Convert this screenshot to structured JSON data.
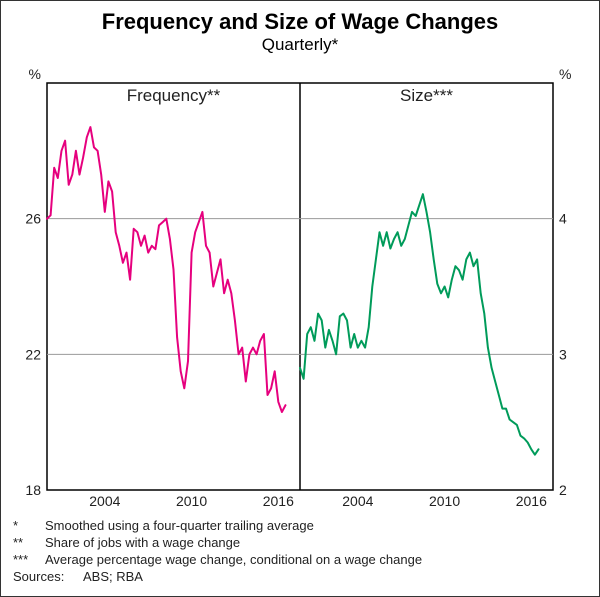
{
  "title": "Frequency and Size of Wage Changes",
  "title_fontsize": 22,
  "subtitle": "Quarterly*",
  "subtitle_fontsize": 17,
  "plot": {
    "background_color": "#ffffff",
    "grid_color": "#999999",
    "frame_color": "#000000",
    "x_start_year": 2000.0,
    "x_end_year": 2017.5,
    "x_ticks": [
      2004,
      2010,
      2016
    ],
    "panels": [
      {
        "label": "Frequency**",
        "y_unit": "%",
        "ylim": [
          18,
          30
        ],
        "y_ticks": [
          18,
          22,
          26
        ],
        "series": {
          "color": "#e6007e",
          "line_width": 2,
          "data": [
            {
              "t": 2000.0,
              "y": 26.0
            },
            {
              "t": 2000.25,
              "y": 26.1
            },
            {
              "t": 2000.5,
              "y": 27.5
            },
            {
              "t": 2000.75,
              "y": 27.2
            },
            {
              "t": 2001.0,
              "y": 28.0
            },
            {
              "t": 2001.25,
              "y": 28.3
            },
            {
              "t": 2001.5,
              "y": 27.0
            },
            {
              "t": 2001.75,
              "y": 27.3
            },
            {
              "t": 2002.0,
              "y": 28.0
            },
            {
              "t": 2002.25,
              "y": 27.3
            },
            {
              "t": 2002.5,
              "y": 27.8
            },
            {
              "t": 2002.75,
              "y": 28.4
            },
            {
              "t": 2003.0,
              "y": 28.7
            },
            {
              "t": 2003.25,
              "y": 28.1
            },
            {
              "t": 2003.5,
              "y": 28.0
            },
            {
              "t": 2003.75,
              "y": 27.3
            },
            {
              "t": 2004.0,
              "y": 26.2
            },
            {
              "t": 2004.25,
              "y": 27.1
            },
            {
              "t": 2004.5,
              "y": 26.8
            },
            {
              "t": 2004.75,
              "y": 25.6
            },
            {
              "t": 2005.0,
              "y": 25.2
            },
            {
              "t": 2005.25,
              "y": 24.7
            },
            {
              "t": 2005.5,
              "y": 25.0
            },
            {
              "t": 2005.75,
              "y": 24.2
            },
            {
              "t": 2006.0,
              "y": 25.7
            },
            {
              "t": 2006.25,
              "y": 25.6
            },
            {
              "t": 2006.5,
              "y": 25.2
            },
            {
              "t": 2006.75,
              "y": 25.5
            },
            {
              "t": 2007.0,
              "y": 25.0
            },
            {
              "t": 2007.25,
              "y": 25.2
            },
            {
              "t": 2007.5,
              "y": 25.1
            },
            {
              "t": 2007.75,
              "y": 25.8
            },
            {
              "t": 2008.0,
              "y": 25.9
            },
            {
              "t": 2008.25,
              "y": 26.0
            },
            {
              "t": 2008.5,
              "y": 25.4
            },
            {
              "t": 2008.75,
              "y": 24.5
            },
            {
              "t": 2009.0,
              "y": 22.5
            },
            {
              "t": 2009.25,
              "y": 21.5
            },
            {
              "t": 2009.5,
              "y": 21.0
            },
            {
              "t": 2009.75,
              "y": 21.8
            },
            {
              "t": 2010.0,
              "y": 25.0
            },
            {
              "t": 2010.25,
              "y": 25.6
            },
            {
              "t": 2010.5,
              "y": 25.9
            },
            {
              "t": 2010.75,
              "y": 26.2
            },
            {
              "t": 2011.0,
              "y": 25.2
            },
            {
              "t": 2011.25,
              "y": 25.0
            },
            {
              "t": 2011.5,
              "y": 24.0
            },
            {
              "t": 2011.75,
              "y": 24.4
            },
            {
              "t": 2012.0,
              "y": 24.8
            },
            {
              "t": 2012.25,
              "y": 23.8
            },
            {
              "t": 2012.5,
              "y": 24.2
            },
            {
              "t": 2012.75,
              "y": 23.8
            },
            {
              "t": 2013.0,
              "y": 23.0
            },
            {
              "t": 2013.25,
              "y": 22.0
            },
            {
              "t": 2013.5,
              "y": 22.2
            },
            {
              "t": 2013.75,
              "y": 21.2
            },
            {
              "t": 2014.0,
              "y": 22.0
            },
            {
              "t": 2014.25,
              "y": 22.2
            },
            {
              "t": 2014.5,
              "y": 22.0
            },
            {
              "t": 2014.75,
              "y": 22.4
            },
            {
              "t": 2015.0,
              "y": 22.6
            },
            {
              "t": 2015.25,
              "y": 20.8
            },
            {
              "t": 2015.5,
              "y": 21.0
            },
            {
              "t": 2015.75,
              "y": 21.5
            },
            {
              "t": 2016.0,
              "y": 20.6
            },
            {
              "t": 2016.25,
              "y": 20.3
            },
            {
              "t": 2016.5,
              "y": 20.5
            }
          ]
        }
      },
      {
        "label": "Size***",
        "y_unit": "%",
        "ylim": [
          2,
          5
        ],
        "y_ticks": [
          2,
          3,
          4
        ],
        "series": {
          "color": "#009b5a",
          "line_width": 2,
          "data": [
            {
              "t": 2000.0,
              "y": 2.9
            },
            {
              "t": 2000.25,
              "y": 2.82
            },
            {
              "t": 2000.5,
              "y": 3.15
            },
            {
              "t": 2000.75,
              "y": 3.2
            },
            {
              "t": 2001.0,
              "y": 3.1
            },
            {
              "t": 2001.25,
              "y": 3.3
            },
            {
              "t": 2001.5,
              "y": 3.25
            },
            {
              "t": 2001.75,
              "y": 3.05
            },
            {
              "t": 2002.0,
              "y": 3.18
            },
            {
              "t": 2002.25,
              "y": 3.1
            },
            {
              "t": 2002.5,
              "y": 3.0
            },
            {
              "t": 2002.75,
              "y": 3.28
            },
            {
              "t": 2003.0,
              "y": 3.3
            },
            {
              "t": 2003.25,
              "y": 3.25
            },
            {
              "t": 2003.5,
              "y": 3.05
            },
            {
              "t": 2003.75,
              "y": 3.15
            },
            {
              "t": 2004.0,
              "y": 3.05
            },
            {
              "t": 2004.25,
              "y": 3.1
            },
            {
              "t": 2004.5,
              "y": 3.05
            },
            {
              "t": 2004.75,
              "y": 3.2
            },
            {
              "t": 2005.0,
              "y": 3.5
            },
            {
              "t": 2005.25,
              "y": 3.7
            },
            {
              "t": 2005.5,
              "y": 3.9
            },
            {
              "t": 2005.75,
              "y": 3.8
            },
            {
              "t": 2006.0,
              "y": 3.9
            },
            {
              "t": 2006.25,
              "y": 3.78
            },
            {
              "t": 2006.5,
              "y": 3.85
            },
            {
              "t": 2006.75,
              "y": 3.9
            },
            {
              "t": 2007.0,
              "y": 3.8
            },
            {
              "t": 2007.25,
              "y": 3.85
            },
            {
              "t": 2007.5,
              "y": 3.95
            },
            {
              "t": 2007.75,
              "y": 4.05
            },
            {
              "t": 2008.0,
              "y": 4.02
            },
            {
              "t": 2008.25,
              "y": 4.1
            },
            {
              "t": 2008.5,
              "y": 4.18
            },
            {
              "t": 2008.75,
              "y": 4.05
            },
            {
              "t": 2009.0,
              "y": 3.9
            },
            {
              "t": 2009.25,
              "y": 3.7
            },
            {
              "t": 2009.5,
              "y": 3.52
            },
            {
              "t": 2009.75,
              "y": 3.45
            },
            {
              "t": 2010.0,
              "y": 3.5
            },
            {
              "t": 2010.25,
              "y": 3.42
            },
            {
              "t": 2010.5,
              "y": 3.55
            },
            {
              "t": 2010.75,
              "y": 3.65
            },
            {
              "t": 2011.0,
              "y": 3.62
            },
            {
              "t": 2011.25,
              "y": 3.55
            },
            {
              "t": 2011.5,
              "y": 3.7
            },
            {
              "t": 2011.75,
              "y": 3.75
            },
            {
              "t": 2012.0,
              "y": 3.65
            },
            {
              "t": 2012.25,
              "y": 3.7
            },
            {
              "t": 2012.5,
              "y": 3.45
            },
            {
              "t": 2012.75,
              "y": 3.3
            },
            {
              "t": 2013.0,
              "y": 3.05
            },
            {
              "t": 2013.25,
              "y": 2.9
            },
            {
              "t": 2013.5,
              "y": 2.8
            },
            {
              "t": 2013.75,
              "y": 2.7
            },
            {
              "t": 2014.0,
              "y": 2.6
            },
            {
              "t": 2014.25,
              "y": 2.6
            },
            {
              "t": 2014.5,
              "y": 2.52
            },
            {
              "t": 2014.75,
              "y": 2.5
            },
            {
              "t": 2015.0,
              "y": 2.48
            },
            {
              "t": 2015.25,
              "y": 2.4
            },
            {
              "t": 2015.5,
              "y": 2.38
            },
            {
              "t": 2015.75,
              "y": 2.35
            },
            {
              "t": 2016.0,
              "y": 2.3
            },
            {
              "t": 2016.25,
              "y": 2.26
            },
            {
              "t": 2016.5,
              "y": 2.3
            }
          ]
        }
      }
    ]
  },
  "footnotes": [
    {
      "mark": "*",
      "text": "Smoothed using a four-quarter trailing average"
    },
    {
      "mark": "**",
      "text": "Share of jobs with a wage change"
    },
    {
      "mark": "***",
      "text": "Average percentage wage change, conditional on a wage change"
    }
  ],
  "sources_label": "Sources:",
  "sources_text": "ABS; RBA"
}
